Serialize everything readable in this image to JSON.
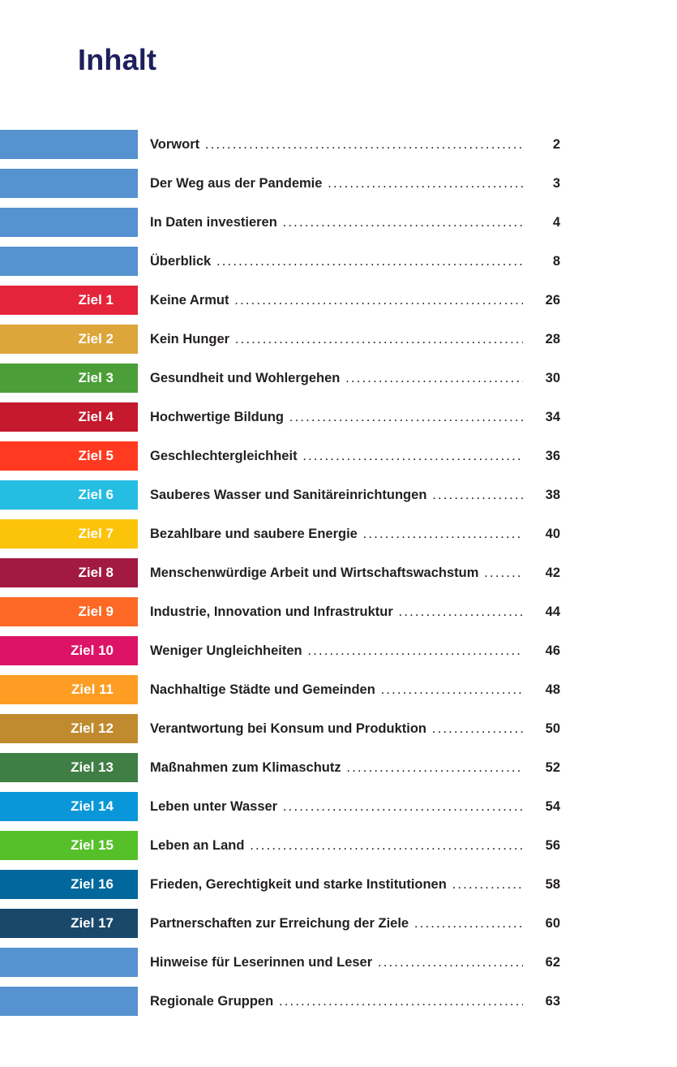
{
  "title": "Inhalt",
  "entries": [
    {
      "label": "",
      "color": "#5592cf",
      "title": "Vorwort",
      "page": "2"
    },
    {
      "label": "",
      "color": "#5592cf",
      "title": "Der Weg aus der Pandemie",
      "page": "3"
    },
    {
      "label": "",
      "color": "#5592cf",
      "title": "In Daten investieren",
      "page": "4"
    },
    {
      "label": "",
      "color": "#5592cf",
      "title": "Überblick",
      "page": "8"
    },
    {
      "label": "Ziel 1",
      "color": "#e5243b",
      "title": "Keine Armut",
      "page": "26"
    },
    {
      "label": "Ziel 2",
      "color": "#dda63a",
      "title": "Kein Hunger",
      "page": "28"
    },
    {
      "label": "Ziel 3",
      "color": "#4c9f38",
      "title": "Gesundheit und Wohlergehen",
      "page": "30"
    },
    {
      "label": "Ziel 4",
      "color": "#c5192d",
      "title": "Hochwertige Bildung",
      "page": "34"
    },
    {
      "label": "Ziel 5",
      "color": "#ff3a21",
      "title": "Geschlechtergleichheit",
      "page": "36"
    },
    {
      "label": "Ziel 6",
      "color": "#26bde2",
      "title": "Sauberes Wasser und Sanitäreinrichtungen",
      "page": "38"
    },
    {
      "label": "Ziel 7",
      "color": "#fcc30b",
      "title": "Bezahlbare und saubere Energie",
      "page": "40"
    },
    {
      "label": "Ziel 8",
      "color": "#a21942",
      "title": "Menschenwürdige Arbeit und Wirtschaftswachstum",
      "page": "42"
    },
    {
      "label": "Ziel 9",
      "color": "#fd6925",
      "title": "Industrie, Innovation und Infrastruktur",
      "page": "44"
    },
    {
      "label": "Ziel 10",
      "color": "#dd1367",
      "title": "Weniger Ungleichheiten",
      "page": "46"
    },
    {
      "label": "Ziel 11",
      "color": "#fd9d24",
      "title": "Nachhaltige Städte und Gemeinden",
      "page": "48"
    },
    {
      "label": "Ziel 12",
      "color": "#bf8b2e",
      "title": "Verantwortung bei Konsum und Produktion",
      "page": "50"
    },
    {
      "label": "Ziel 13",
      "color": "#3f7e44",
      "title": "Maßnahmen zum Klimaschutz",
      "page": "52"
    },
    {
      "label": "Ziel 14",
      "color": "#0a97d9",
      "title": "Leben unter Wasser",
      "page": "54"
    },
    {
      "label": "Ziel 15",
      "color": "#56c02b",
      "title": "Leben an Land",
      "page": "56"
    },
    {
      "label": "Ziel 16",
      "color": "#00689d",
      "title": "Frieden, Gerechtigkeit und starke Institutionen",
      "page": "58"
    },
    {
      "label": "Ziel 17",
      "color": "#19486a",
      "title": "Partnerschaften zur Erreichung der Ziele",
      "page": "60"
    },
    {
      "label": "",
      "color": "#5592cf",
      "title": "Hinweise für Leserinnen und Leser",
      "page": "62"
    },
    {
      "label": "",
      "color": "#5592cf",
      "title": "Regionale Gruppen",
      "page": "63"
    }
  ]
}
